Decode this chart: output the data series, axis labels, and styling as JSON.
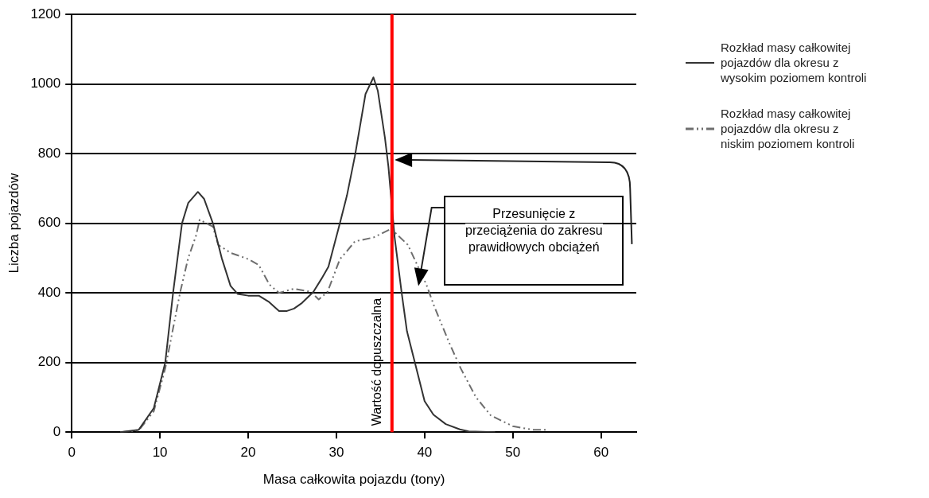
{
  "chart_data": {
    "type": "line",
    "xlabel": "Masa całkowita pojazdu (tony)",
    "ylabel": "Liczba pojazdów",
    "xlim": [
      0,
      64
    ],
    "xticks": [
      0,
      10,
      20,
      30,
      40,
      50,
      60
    ],
    "ylim": [
      0,
      1200
    ],
    "yticks": [
      0,
      200,
      400,
      600,
      800,
      1000,
      1200
    ],
    "grid": "y",
    "legend": "right",
    "marker": "none",
    "series": [
      {
        "name": "Rozkład masy całkowitej pojazdów dla okresu z wysokim poziomem kontroli",
        "color": "#333333",
        "line_style": "solid",
        "x": [
          5.5,
          7.6,
          9.3,
          10.6,
          11.5,
          12.5,
          13.2,
          14.3,
          15,
          16,
          17,
          18,
          18.8,
          20,
          21.2,
          22.3,
          23.5,
          24.4,
          25.2,
          26.1,
          27.4,
          28.3,
          29.1,
          30.4,
          31.2,
          32.1,
          33.3,
          34.2,
          34.7,
          35.5,
          35.9,
          36.6,
          37.1,
          37.4,
          38,
          38.9,
          40,
          41,
          42.4,
          44,
          45,
          48
        ],
        "values": [
          0,
          7,
          69,
          200,
          403,
          600,
          658,
          690,
          670,
          600,
          500,
          420,
          397,
          392,
          392,
          375,
          348,
          348,
          355,
          371,
          403,
          440,
          475,
          600,
          680,
          793,
          971,
          1019,
          980,
          846,
          762,
          560,
          460,
          400,
          290,
          200,
          89,
          50,
          23,
          8,
          2,
          0
        ]
      },
      {
        "name": "Rozkład masy całkowitej pojazdów dla okresu z niskim poziomem kontroli",
        "color": "#6e6e6e",
        "line_style": "dashed",
        "x": [
          5.5,
          7.6,
          9.3,
          10.6,
          11.5,
          12.3,
          13.2,
          14.1,
          14.5,
          16,
          16.6,
          18,
          20,
          21.2,
          22.4,
          23.5,
          25.2,
          27.1,
          28,
          29,
          30.4,
          31.2,
          32.1,
          34.2,
          36.2,
          38.1,
          40.2,
          41.1,
          42.8,
          44.1,
          45.8,
          47.5,
          50,
          52.2,
          54
        ],
        "values": [
          0,
          5,
          60,
          183,
          300,
          403,
          500,
          565,
          610,
          590,
          538,
          515,
          497,
          480,
          424,
          400,
          412,
          403,
          381,
          403,
          497,
          520,
          548,
          559,
          584,
          538,
          424,
          361,
          256,
          183,
          101,
          48,
          17,
          7,
          7
        ]
      }
    ],
    "ref_lines": [
      {
        "axis": "x",
        "value": 36.3,
        "label": "Wartość dopuszczalna",
        "color": "#ff0000"
      }
    ],
    "annotations": [
      "Przesunięcie z przeciążenia do zakresu prawidłowych obciążeń"
    ]
  }
}
